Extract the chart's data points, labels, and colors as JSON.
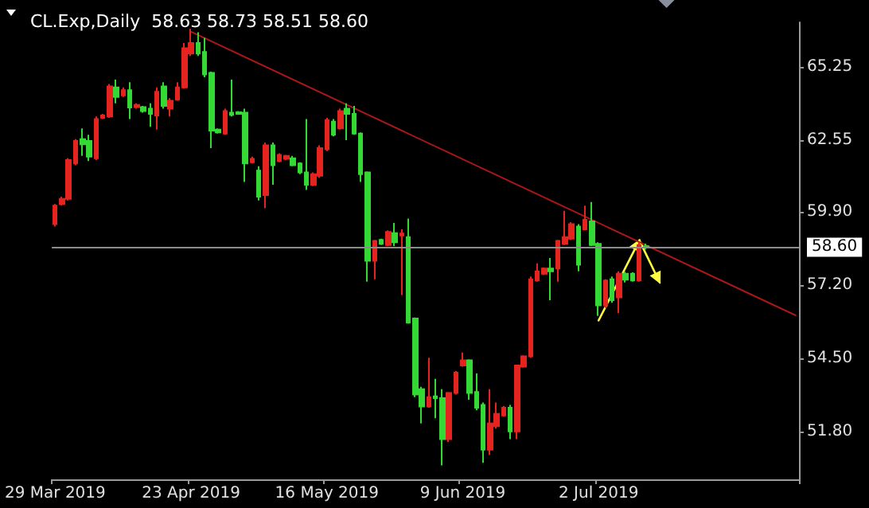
{
  "chart_data": {
    "type": "candlestick",
    "title": "CL.Exp,Daily  58.63 58.73 58.51 58.60",
    "categories": [
      "29 Mar 2019",
      null,
      null,
      null,
      null,
      null,
      null,
      null,
      null,
      null,
      null,
      null,
      null,
      null,
      null,
      null,
      null,
      null,
      null,
      null,
      "23 Apr 2019",
      null,
      null,
      null,
      null,
      null,
      null,
      null,
      null,
      null,
      null,
      null,
      null,
      null,
      null,
      null,
      null,
      null,
      null,
      null,
      "16 May 2019",
      null,
      null,
      null,
      null,
      null,
      null,
      null,
      null,
      null,
      null,
      null,
      null,
      null,
      null,
      null,
      null,
      null,
      null,
      null,
      "9 Jun 2019",
      null,
      null,
      null,
      null,
      null,
      null,
      null,
      null,
      null,
      null,
      null,
      null,
      null,
      null,
      null,
      null,
      null,
      null,
      null,
      "2 Jul 2019",
      null,
      null,
      null,
      null,
      null,
      null,
      null,
      null,
      null,
      null,
      null,
      null,
      null,
      null,
      null,
      null,
      null,
      null,
      null,
      null,
      null,
      null,
      null,
      null,
      null,
      null,
      null,
      null,
      null
    ],
    "ohlc": [
      [
        59.45,
        60.19,
        59.36,
        60.13
      ],
      [
        60.19,
        60.46,
        60.13,
        60.38
      ],
      [
        60.38,
        61.87,
        60.32,
        61.81
      ],
      [
        61.68,
        62.58,
        61.62,
        62.51
      ],
      [
        62.58,
        62.97,
        61.96,
        62.39
      ],
      [
        62.51,
        62.74,
        61.77,
        61.93
      ],
      [
        61.87,
        63.41,
        61.81,
        63.32
      ],
      [
        63.36,
        63.51,
        63.32,
        63.45
      ],
      [
        63.41,
        64.61,
        63.36,
        64.52
      ],
      [
        64.48,
        64.77,
        63.9,
        64.13
      ],
      [
        64.19,
        64.48,
        64.13,
        64.38
      ],
      [
        64.38,
        64.67,
        63.32,
        63.74
      ],
      [
        63.76,
        63.9,
        63.7,
        63.84
      ],
      [
        63.76,
        63.8,
        63.55,
        63.61
      ],
      [
        63.7,
        63.9,
        63.03,
        63.51
      ],
      [
        63.45,
        64.48,
        62.93,
        64.32
      ],
      [
        64.52,
        64.67,
        63.7,
        63.8
      ],
      [
        63.7,
        64.09,
        63.41,
        63.99
      ],
      [
        64.03,
        64.67,
        63.99,
        64.48
      ],
      [
        64.48,
        66.12,
        64.44,
        65.93
      ],
      [
        65.73,
        66.64,
        65.64,
        66.12
      ],
      [
        66.12,
        66.51,
        65.64,
        65.73
      ],
      [
        65.79,
        66.31,
        64.86,
        64.96
      ],
      [
        65.02,
        65.06,
        62.25,
        62.89
      ],
      [
        62.93,
        62.97,
        62.78,
        62.83
      ],
      [
        62.78,
        63.7,
        62.74,
        63.61
      ],
      [
        63.55,
        64.77,
        63.41,
        63.47
      ],
      [
        63.57,
        63.61,
        63.47,
        63.51
      ],
      [
        63.55,
        63.7,
        61.0,
        61.68
      ],
      [
        61.73,
        61.93,
        61.68,
        61.85
      ],
      [
        61.42,
        61.58,
        60.32,
        60.46
      ],
      [
        60.52,
        62.45,
        60.03,
        62.35
      ],
      [
        62.35,
        62.45,
        60.9,
        61.62
      ],
      [
        61.77,
        62.06,
        61.73,
        62.0
      ],
      [
        61.85,
        62.0,
        61.81,
        61.96
      ],
      [
        61.87,
        61.96,
        61.58,
        61.62
      ],
      [
        61.68,
        61.73,
        61.29,
        61.35
      ],
      [
        61.35,
        63.32,
        60.71,
        60.9
      ],
      [
        60.9,
        61.35,
        60.85,
        61.29
      ],
      [
        61.23,
        62.35,
        61.16,
        62.25
      ],
      [
        62.2,
        63.36,
        62.14,
        63.28
      ],
      [
        63.22,
        63.32,
        62.68,
        62.74
      ],
      [
        62.97,
        63.7,
        62.93,
        63.61
      ],
      [
        63.7,
        63.9,
        62.54,
        63.51
      ],
      [
        63.51,
        63.8,
        62.74,
        62.78
      ],
      [
        62.78,
        62.83,
        61.0,
        61.29
      ],
      [
        61.35,
        61.39,
        57.33,
        58.1
      ],
      [
        58.1,
        58.87,
        57.42,
        58.83
      ],
      [
        58.87,
        58.91,
        58.68,
        58.72
      ],
      [
        58.68,
        59.22,
        58.64,
        59.16
      ],
      [
        59.12,
        59.49,
        58.64,
        58.78
      ],
      [
        59.03,
        59.26,
        56.84,
        59.1
      ],
      [
        58.97,
        59.65,
        55.78,
        55.82
      ],
      [
        55.97,
        56.01,
        53.08,
        53.17
      ],
      [
        53.37,
        53.46,
        52.11,
        52.73
      ],
      [
        52.73,
        54.53,
        52.69,
        53.08
      ],
      [
        53.11,
        53.75,
        52.3,
        53.04
      ],
      [
        53.04,
        53.37,
        50.56,
        51.53
      ],
      [
        51.53,
        53.27,
        51.43,
        53.23
      ],
      [
        53.23,
        54.04,
        53.17,
        53.98
      ],
      [
        54.24,
        54.72,
        54.2,
        54.43
      ],
      [
        54.43,
        54.47,
        52.98,
        53.23
      ],
      [
        53.27,
        53.95,
        52.59,
        52.69
      ],
      [
        52.79,
        52.88,
        50.66,
        51.14
      ],
      [
        51.14,
        53.37,
        50.95,
        52.11
      ],
      [
        52.01,
        52.88,
        51.92,
        52.46
      ],
      [
        52.4,
        52.75,
        52.36,
        52.69
      ],
      [
        52.69,
        52.79,
        51.53,
        51.82
      ],
      [
        51.82,
        54.27,
        51.53,
        54.24
      ],
      [
        54.2,
        54.62,
        54.16,
        54.58
      ],
      [
        54.58,
        57.52,
        54.53,
        57.42
      ],
      [
        57.37,
        58.0,
        57.33,
        57.71
      ],
      [
        57.62,
        57.85,
        57.58,
        57.81
      ],
      [
        57.81,
        58.2,
        56.65,
        57.71
      ],
      [
        57.81,
        58.87,
        57.33,
        58.83
      ],
      [
        58.72,
        59.94,
        58.68,
        58.97
      ],
      [
        58.91,
        59.52,
        58.87,
        59.45
      ],
      [
        59.36,
        59.45,
        57.71,
        57.95
      ],
      [
        59.26,
        60.13,
        59.22,
        59.61
      ],
      [
        59.55,
        60.26,
        58.64,
        58.68
      ],
      [
        58.72,
        58.78,
        56.07,
        56.46
      ],
      [
        56.46,
        57.42,
        56.36,
        57.37
      ],
      [
        57.42,
        57.52,
        56.55,
        56.65
      ],
      [
        56.75,
        57.71,
        56.17,
        57.62
      ],
      [
        57.62,
        57.7,
        57.3,
        57.4
      ],
      [
        57.62,
        57.67,
        57.33,
        57.37
      ],
      [
        57.37,
        58.8,
        57.33,
        58.68
      ],
      [
        58.63,
        58.73,
        58.51,
        58.6
      ],
      null,
      null,
      null,
      null,
      null,
      null,
      null,
      null,
      null,
      null,
      null,
      null,
      null,
      null,
      null,
      null,
      null,
      null,
      null,
      null,
      null,
      null
    ],
    "colors": [
      "#e52420",
      "#e52420",
      "#e52420",
      "#e52420",
      "#35d935",
      "#35d935",
      "#e52420",
      "#e52420",
      "#e52420",
      "#35d935",
      "#e52420",
      "#35d935",
      "#e52420",
      "#35d935",
      "#35d935",
      "#e52420",
      "#35d935",
      "#e52420",
      "#e52420",
      "#e52420",
      "#e52420",
      "#35d935",
      "#35d935",
      "#35d935",
      "#35d935",
      "#e52420",
      "#35d935",
      "#35d935",
      "#35d935",
      "#e52420",
      "#35d935",
      "#e52420",
      "#35d935",
      "#e52420",
      "#e52420",
      "#35d935",
      "#35d935",
      "#35d935",
      "#e52420",
      "#e52420",
      "#e52420",
      "#35d935",
      "#e52420",
      "#35d935",
      "#35d935",
      "#35d935",
      "#35d935",
      "#e52420",
      "#35d935",
      "#e52420",
      "#35d935",
      "#e52420",
      "#35d935",
      "#35d935",
      "#35d935",
      "#e52420",
      "#35d935",
      "#35d935",
      "#e52420",
      "#e52420",
      "#e52420",
      "#35d935",
      "#35d935",
      "#35d935",
      "#e52420",
      "#e52420",
      "#e52420",
      "#35d935",
      "#e52420",
      "#e52420",
      "#e52420",
      "#e52420",
      "#e52420",
      "#35d935",
      "#e52420",
      "#e52420",
      "#e52420",
      "#35d935",
      "#e52420",
      "#35d935",
      "#35d935",
      "#e52420",
      "#35d935",
      "#e52420",
      "#35d935",
      "#35d935",
      "#e52420",
      "#35d935",
      null,
      null,
      null,
      null,
      null,
      null,
      null,
      null,
      null,
      null,
      null,
      null,
      null,
      null,
      null,
      null,
      null,
      null,
      null,
      null,
      null,
      null
    ],
    "series": [
      {
        "type": "line",
        "color": "#a81818",
        "values": [
          null,
          null,
          null,
          null,
          null,
          null,
          null,
          null,
          null,
          null,
          null,
          null,
          null,
          null,
          null,
          null,
          null,
          null,
          null,
          null,
          66.53,
          null,
          null,
          null,
          null,
          null,
          null,
          null,
          null,
          null,
          null,
          null,
          null,
          null,
          null,
          null,
          null,
          null,
          null,
          null,
          null,
          null,
          null,
          null,
          null,
          null,
          null,
          null,
          null,
          null,
          null,
          null,
          null,
          null,
          null,
          null,
          null,
          null,
          null,
          null,
          null,
          null,
          null,
          null,
          null,
          null,
          null,
          null,
          null,
          null,
          null,
          null,
          null,
          null,
          null,
          null,
          null,
          null,
          null,
          null,
          null,
          null,
          null,
          null,
          null,
          null,
          null,
          null,
          null,
          null,
          null,
          null,
          null,
          null,
          null,
          null,
          null,
          null,
          null,
          null,
          null,
          null,
          null,
          null,
          null,
          null,
          null,
          null,
          null,
          56.09
        ]
      }
    ],
    "ylim": [
      50.05,
      66.88
    ],
    "yticks": [
      {
        "value": 51.8,
        "label": "51.80"
      },
      {
        "value": 54.5,
        "label": "54.50"
      },
      {
        "value": 57.2,
        "label": "57.20"
      },
      {
        "value": 59.9,
        "label": "59.90"
      },
      {
        "value": 62.55,
        "label": "62.55"
      },
      {
        "value": 65.25,
        "label": "65.25"
      }
    ],
    "ref_lines": [
      {
        "axis": "y",
        "value": 58.6,
        "label": "58.60",
        "color": "#8c8c8c"
      }
    ]
  }
}
